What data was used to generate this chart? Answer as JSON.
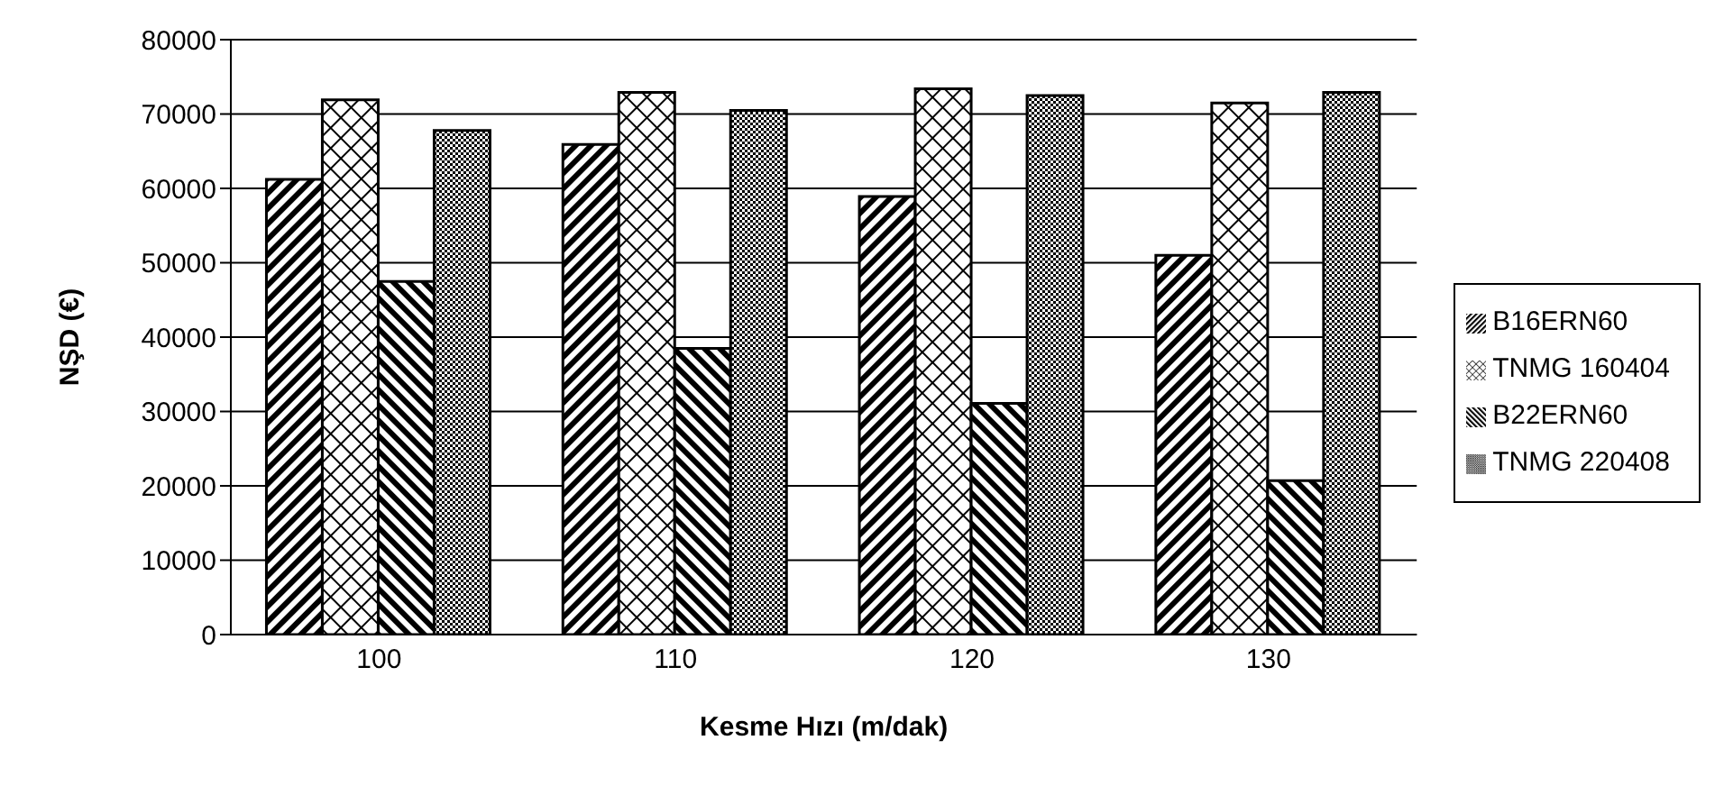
{
  "chart_data": {
    "type": "bar",
    "xlabel": "Kesme Hızı (m/dak)",
    "ylabel": "NŞD (€)",
    "categories": [
      "100",
      "110",
      "120",
      "130"
    ],
    "series": [
      {
        "name": "B16ERN60",
        "color": "#000000",
        "values": [
          61200,
          65900,
          58900,
          51000
        ]
      },
      {
        "name": "TNMG 160404",
        "color": "#000000",
        "values": [
          71900,
          72900,
          73400,
          71500
        ]
      },
      {
        "name": "B22ERN60",
        "color": "#000000",
        "values": [
          47500,
          38500,
          31100,
          20700
        ]
      },
      {
        "name": "TNMG 220408",
        "color": "#000000",
        "values": [
          67800,
          70500,
          72500,
          72900
        ]
      }
    ],
    "ylim": [
      0,
      80000
    ],
    "yticks": [
      0,
      10000,
      20000,
      30000,
      40000,
      50000,
      60000,
      70000,
      80000
    ],
    "grid": "y",
    "legend": "right"
  }
}
